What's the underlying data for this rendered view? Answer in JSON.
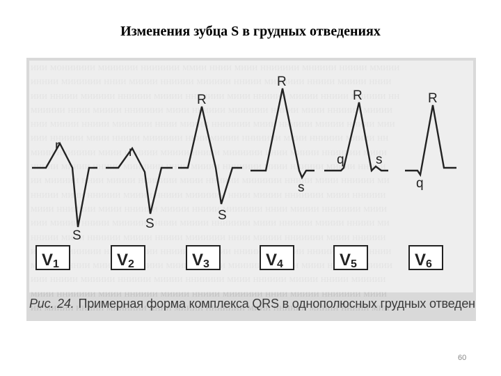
{
  "slide": {
    "title": "Изменения зубца S в грудных отведениях",
    "page_number": "60"
  },
  "figure": {
    "caption_label": "Рис. 24.",
    "caption_text": "Примерная форма комплекса QRS в однополюсных грудных отведениях",
    "colors": {
      "background": "#d9d9d9",
      "panel": "#ffffff",
      "trace": "#222222",
      "text": "#3a3a3a"
    },
    "leads": [
      {
        "name": "V",
        "sub": "1",
        "waves": [
          "r",
          "S"
        ]
      },
      {
        "name": "V",
        "sub": "2",
        "waves": [
          "r",
          "S"
        ]
      },
      {
        "name": "V",
        "sub": "3",
        "waves": [
          "R",
          "S"
        ]
      },
      {
        "name": "V",
        "sub": "4",
        "waves": [
          "R",
          "s"
        ]
      },
      {
        "name": "V",
        "sub": "5",
        "waves": [
          "R",
          "q",
          "s"
        ]
      },
      {
        "name": "V",
        "sub": "6",
        "waves": [
          "R",
          "q"
        ]
      }
    ]
  }
}
